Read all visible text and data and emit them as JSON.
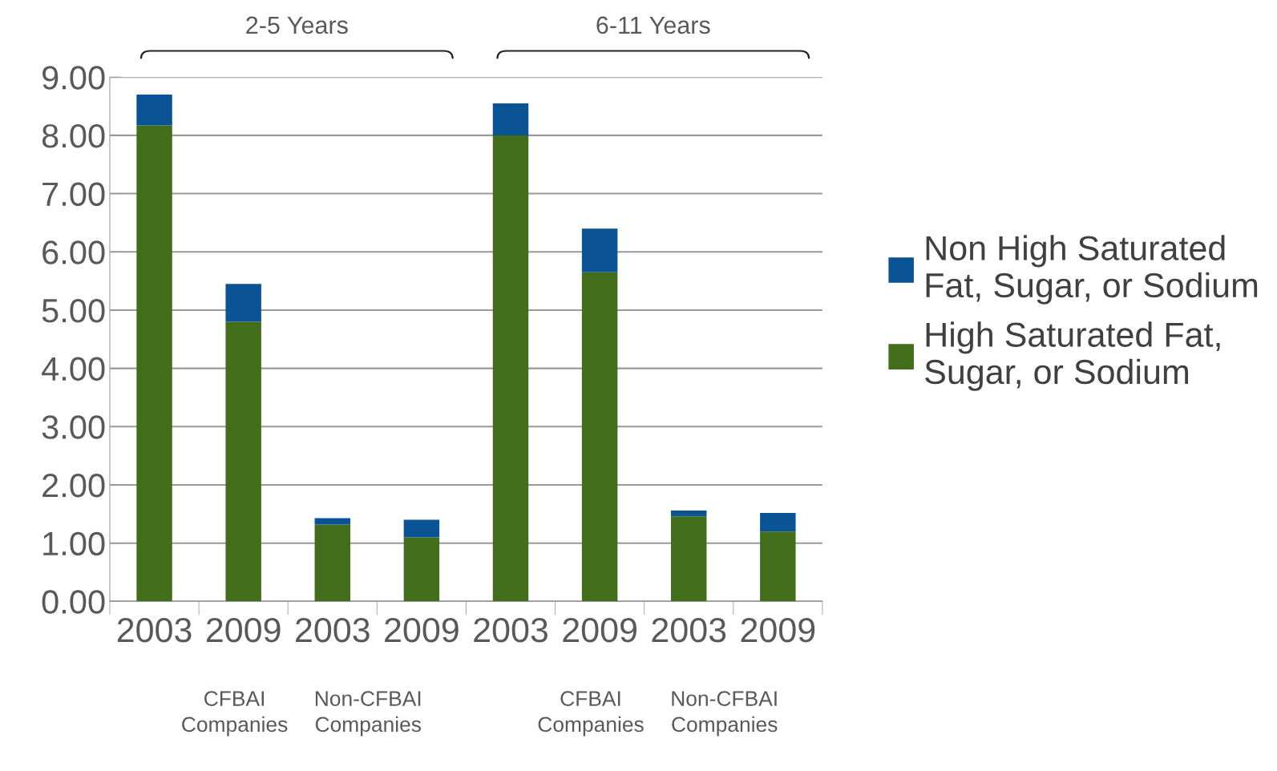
{
  "chart_data": {
    "type": "bar",
    "stacked": true,
    "categories": [
      "2003",
      "2009",
      "2003",
      "2009",
      "2003",
      "2009",
      "2003",
      "2009"
    ],
    "series": [
      {
        "name": "High Saturated Fat, Sugar, or Sodium",
        "color": "#426d1a",
        "values": [
          8.17,
          4.8,
          1.32,
          1.1,
          8.0,
          5.65,
          1.46,
          1.2
        ]
      },
      {
        "name": "Non High Saturated Fat, Sugar, or Sodium",
        "color": "#0a5394",
        "values": [
          0.53,
          0.65,
          0.11,
          0.3,
          0.55,
          0.75,
          0.1,
          0.32
        ]
      }
    ],
    "ylim": [
      0,
      9
    ],
    "yticks": [
      {
        "value": 0,
        "label": "0.00"
      },
      {
        "value": 1,
        "label": "1.00"
      },
      {
        "value": 2,
        "label": "2.00"
      },
      {
        "value": 3,
        "label": "3.00"
      },
      {
        "value": 4,
        "label": "4.00"
      },
      {
        "value": 5,
        "label": "5.00"
      },
      {
        "value": 6,
        "label": "6.00"
      },
      {
        "value": 7,
        "label": "7.00"
      },
      {
        "value": 8,
        "label": "8.00"
      },
      {
        "value": 9,
        "label": "9.00"
      }
    ],
    "grid": "y",
    "legend": "right",
    "annotations": [
      "2-5 Years",
      "6-11 Years",
      "CFBAI Companies",
      "Non-CFBAI Companies",
      "CFBAI Companies",
      "Non-CFBAI Companies"
    ]
  }
}
